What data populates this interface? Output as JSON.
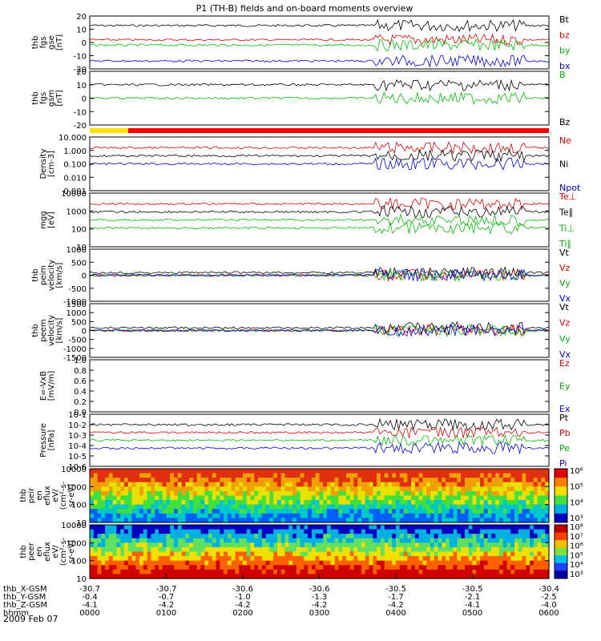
{
  "title": "P1 (TH-B) fields and on-board moments overview",
  "date": "2009 Feb 07",
  "panels": [
    {
      "id": "fgs_gse",
      "ylabel": [
        "thb",
        "fgs",
        "gse",
        "[nT]"
      ],
      "ylim": [
        -20,
        20
      ],
      "ticks": [
        "20",
        "10",
        "0",
        "-10",
        "-20"
      ],
      "legend": [
        {
          "text": "Bt",
          "color": "#000000"
        },
        {
          "text": "bz",
          "color": "#e00000"
        },
        {
          "text": "by",
          "color": "#00c000"
        },
        {
          "text": "bx",
          "color": "#0000dd"
        }
      ]
    },
    {
      "id": "fgs_gsm",
      "ylabel": [
        "thb",
        "fgs",
        "gsm",
        "[nT]"
      ],
      "ylim": [
        -20,
        20
      ],
      "ticks": [
        "20",
        "10",
        "0",
        "-10",
        "-20"
      ],
      "legend": [
        {
          "text": "B",
          "color": "#00c000"
        },
        {
          "text": "Bz",
          "color": "#000000"
        }
      ]
    },
    {
      "id": "density",
      "ylabel": [
        "Density",
        "[cm-3]"
      ],
      "ticks": [
        "10.000",
        "1.000",
        "0.100",
        "0.010",
        "0.001"
      ],
      "legend": [
        {
          "text": "Ne",
          "color": "#e00000"
        },
        {
          "text": "Ni",
          "color": "#000000"
        },
        {
          "text": "Npot",
          "color": "#0000dd"
        }
      ]
    },
    {
      "id": "temp",
      "ylabel": [
        "mgg",
        "[eV]"
      ],
      "ticks": [
        "10000",
        "1000",
        "100",
        "10"
      ],
      "legend": [
        {
          "text": "Te⊥",
          "color": "#e00000"
        },
        {
          "text": "Te∥",
          "color": "#000000"
        },
        {
          "text": "Ti⊥",
          "color": "#00c000"
        },
        {
          "text": "Ti∥",
          "color": "#00c000"
        }
      ]
    },
    {
      "id": "peim",
      "ylabel": [
        "thb",
        "peim",
        "velocity",
        "[km/s]"
      ],
      "ticks": [
        "1000",
        "500",
        "0",
        "-500",
        "-1000"
      ],
      "legend": [
        {
          "text": "Vt",
          "color": "#000000"
        },
        {
          "text": "Vz",
          "color": "#e00000"
        },
        {
          "text": "Vy",
          "color": "#00c000"
        },
        {
          "text": "Vx",
          "color": "#0000dd"
        }
      ]
    },
    {
      "id": "peem",
      "ylabel": [
        "thb",
        "peem",
        "velocity",
        "[km/s]"
      ],
      "ticks": [
        "1500",
        "1000",
        "500",
        "0",
        "-500",
        "-1000",
        "-1500"
      ],
      "legend": [
        {
          "text": "Vt",
          "color": "#000000"
        },
        {
          "text": "Vz",
          "color": "#e00000"
        },
        {
          "text": "Vy",
          "color": "#00c000"
        },
        {
          "text": "Vx",
          "color": "#0000dd"
        }
      ]
    },
    {
      "id": "efield",
      "ylabel": [
        "E=-VxB",
        "[mV/m]"
      ],
      "ticks": [
        "1.0",
        "0.8",
        "0.6",
        "0.4",
        "0.2",
        "0.0"
      ],
      "legend": [
        {
          "text": "Ez",
          "color": "#e00000"
        },
        {
          "text": "Ey",
          "color": "#00c000"
        },
        {
          "text": "Ex",
          "color": "#0000dd"
        }
      ]
    },
    {
      "id": "pressure",
      "ylabel": [
        "Pressure",
        "[nPa]"
      ],
      "ticks": [
        "10-1",
        "10-2",
        "10-3",
        "10-4",
        "10-5",
        "10-6"
      ],
      "legend": [
        {
          "text": "Pt",
          "color": "#000000"
        },
        {
          "text": "Pb",
          "color": "#e00000"
        },
        {
          "text": "Pe",
          "color": "#00c000"
        },
        {
          "text": "Pi",
          "color": "#0000dd"
        }
      ]
    },
    {
      "id": "peir",
      "ylabel": [
        "thb",
        "peir",
        "en",
        "eflux",
        "eV/",
        "(cm²-s-",
        "sr-eV)"
      ],
      "ticks": [
        "10000",
        "1000",
        "100",
        "10"
      ],
      "colorbar": [
        "10⁶",
        "10⁵",
        "10⁴",
        "10³"
      ]
    },
    {
      "id": "peer",
      "ylabel": [
        "thb",
        "peer",
        "en",
        "eflux",
        "eV/",
        "(cm²-s-",
        "sr-eV)"
      ],
      "ticks": [
        "10000",
        "1000",
        "100",
        "10"
      ],
      "colorbar": [
        "10⁸",
        "10⁷",
        "10⁶",
        "10⁵",
        "10⁴",
        "10³"
      ]
    }
  ],
  "xaxis": {
    "rows": [
      {
        "label": "thb_X-GSM",
        "values": [
          "-30.7",
          "-30.7",
          "-30.6",
          "-30.6",
          "-30.5",
          "-30.5",
          "-30.4"
        ]
      },
      {
        "label": "thb_Y-GSM",
        "values": [
          "-0.4",
          "-0.7",
          "-1.0",
          "-1.3",
          "-1.7",
          "-2.1",
          "-2.5"
        ]
      },
      {
        "label": "thb_Z-GSM",
        "values": [
          "-4.1",
          "-4.2",
          "-4.2",
          "-4.2",
          "-4.2",
          "-4.1",
          "-4.0"
        ]
      },
      {
        "label": "hhmm",
        "values": [
          "0000",
          "0100",
          "0200",
          "0300",
          "0400",
          "0500",
          "0600"
        ]
      }
    ]
  },
  "chart_data": {
    "type": "line",
    "title": "P1 (TH-B) fields and on-board moments overview",
    "x": [
      "0000",
      "0100",
      "0200",
      "0300",
      "0400",
      "0500",
      "0600"
    ],
    "series": [
      {
        "name": "Bt",
        "values": [
          14,
          15,
          16,
          17,
          8,
          12,
          8
        ]
      },
      {
        "name": "bz",
        "values": [
          2,
          1,
          1,
          1,
          2,
          2,
          1
        ]
      },
      {
        "name": "by",
        "values": [
          -4,
          -3,
          -4,
          -3,
          -2,
          -4,
          -2
        ]
      },
      {
        "name": "bx",
        "values": [
          -14,
          -15,
          -15,
          -16,
          -4,
          -6,
          -3
        ]
      },
      {
        "name": "Ni",
        "values": [
          0.3,
          0.2,
          0.15,
          0.3,
          0.5,
          0.4,
          0.3
        ]
      },
      {
        "name": "Ti⊥",
        "values": [
          2000,
          2500,
          3000,
          3000,
          1000,
          1500,
          1500
        ]
      },
      {
        "name": "Te⊥",
        "values": [
          300,
          300,
          400,
          500,
          600,
          400,
          500
        ]
      }
    ],
    "ylim": [
      -20,
      20
    ]
  }
}
